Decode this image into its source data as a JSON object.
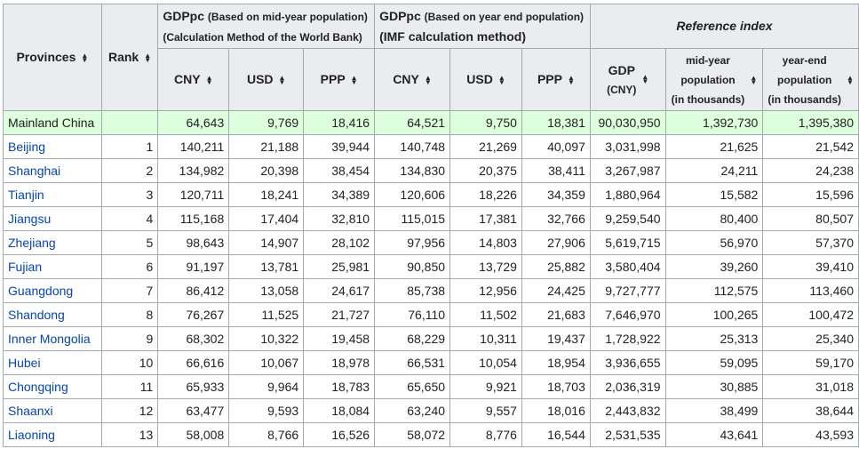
{
  "headers": {
    "provinces": "Provinces",
    "rank": "Rank",
    "gdppc1_title": "GDPpc",
    "gdppc1_note": "(Based on mid-year population)",
    "gdppc1_method": "(Calculation Method of the World Bank)",
    "gdppc2_title": "GDPpc",
    "gdppc2_note": "(Based on year end population)",
    "gdppc2_method": "(IMF calculation method)",
    "reference_index": "Reference index",
    "cny": "CNY",
    "usd": "USD",
    "ppp": "PPP",
    "gdp": "GDP",
    "gdp_unit": "(CNY)",
    "midyear_line1": "mid-year",
    "midyear_line2": "population",
    "midyear_line3": "(in thousands)",
    "yearend_line1": "year-end",
    "yearend_line2": "population",
    "yearend_line3": "(in thousands)"
  },
  "rows": [
    {
      "province": "Mainland China",
      "rank": "",
      "cny1": "64,643",
      "usd1": "9,769",
      "ppp1": "18,416",
      "cny2": "64,521",
      "usd2": "9,750",
      "ppp2": "18,381",
      "gdp": "90,030,950",
      "midyear": "1,392,730",
      "yearend": "1,395,380"
    },
    {
      "province": "Beijing",
      "rank": "1",
      "cny1": "140,211",
      "usd1": "21,188",
      "ppp1": "39,944",
      "cny2": "140,748",
      "usd2": "21,269",
      "ppp2": "40,097",
      "gdp": "3,031,998",
      "midyear": "21,625",
      "yearend": "21,542"
    },
    {
      "province": "Shanghai",
      "rank": "2",
      "cny1": "134,982",
      "usd1": "20,398",
      "ppp1": "38,454",
      "cny2": "134,830",
      "usd2": "20,375",
      "ppp2": "38,411",
      "gdp": "3,267,987",
      "midyear": "24,211",
      "yearend": "24,238"
    },
    {
      "province": "Tianjin",
      "rank": "3",
      "cny1": "120,711",
      "usd1": "18,241",
      "ppp1": "34,389",
      "cny2": "120,606",
      "usd2": "18,226",
      "ppp2": "34,359",
      "gdp": "1,880,964",
      "midyear": "15,582",
      "yearend": "15,596"
    },
    {
      "province": "Jiangsu",
      "rank": "4",
      "cny1": "115,168",
      "usd1": "17,404",
      "ppp1": "32,810",
      "cny2": "115,015",
      "usd2": "17,381",
      "ppp2": "32,766",
      "gdp": "9,259,540",
      "midyear": "80,400",
      "yearend": "80,507"
    },
    {
      "province": "Zhejiang",
      "rank": "5",
      "cny1": "98,643",
      "usd1": "14,907",
      "ppp1": "28,102",
      "cny2": "97,956",
      "usd2": "14,803",
      "ppp2": "27,906",
      "gdp": "5,619,715",
      "midyear": "56,970",
      "yearend": "57,370"
    },
    {
      "province": "Fujian",
      "rank": "6",
      "cny1": "91,197",
      "usd1": "13,781",
      "ppp1": "25,981",
      "cny2": "90,850",
      "usd2": "13,729",
      "ppp2": "25,882",
      "gdp": "3,580,404",
      "midyear": "39,260",
      "yearend": "39,410"
    },
    {
      "province": "Guangdong",
      "rank": "7",
      "cny1": "86,412",
      "usd1": "13,058",
      "ppp1": "24,617",
      "cny2": "85,738",
      "usd2": "12,956",
      "ppp2": "24,425",
      "gdp": "9,727,777",
      "midyear": "112,575",
      "yearend": "113,460"
    },
    {
      "province": "Shandong",
      "rank": "8",
      "cny1": "76,267",
      "usd1": "11,525",
      "ppp1": "21,727",
      "cny2": "76,110",
      "usd2": "11,502",
      "ppp2": "21,683",
      "gdp": "7,646,970",
      "midyear": "100,265",
      "yearend": "100,472"
    },
    {
      "province": "Inner Mongolia",
      "rank": "9",
      "cny1": "68,302",
      "usd1": "10,322",
      "ppp1": "19,458",
      "cny2": "68,229",
      "usd2": "10,311",
      "ppp2": "19,437",
      "gdp": "1,728,922",
      "midyear": "25,313",
      "yearend": "25,340"
    },
    {
      "province": "Hubei",
      "rank": "10",
      "cny1": "66,616",
      "usd1": "10,067",
      "ppp1": "18,978",
      "cny2": "66,531",
      "usd2": "10,054",
      "ppp2": "18,954",
      "gdp": "3,936,655",
      "midyear": "59,095",
      "yearend": "59,170"
    },
    {
      "province": "Chongqing",
      "rank": "11",
      "cny1": "65,933",
      "usd1": "9,964",
      "ppp1": "18,783",
      "cny2": "65,650",
      "usd2": "9,921",
      "ppp2": "18,703",
      "gdp": "2,036,319",
      "midyear": "30,885",
      "yearend": "31,018"
    },
    {
      "province": "Shaanxi",
      "rank": "12",
      "cny1": "63,477",
      "usd1": "9,593",
      "ppp1": "18,084",
      "cny2": "63,240",
      "usd2": "9,557",
      "ppp2": "18,016",
      "gdp": "2,443,832",
      "midyear": "38,499",
      "yearend": "38,644"
    },
    {
      "province": "Liaoning",
      "rank": "13",
      "cny1": "58,008",
      "usd1": "8,766",
      "ppp1": "16,526",
      "cny2": "58,072",
      "usd2": "8,776",
      "ppp2": "16,544",
      "gdp": "2,531,535",
      "midyear": "43,641",
      "yearend": "43,593"
    }
  ],
  "colors": {
    "header_bg": "#eaecf0",
    "border": "#a2a9b1",
    "link": "#0645ad",
    "highlight_row": "#ddffdd"
  },
  "icons": {
    "sort": "sort-arrows-icon"
  }
}
